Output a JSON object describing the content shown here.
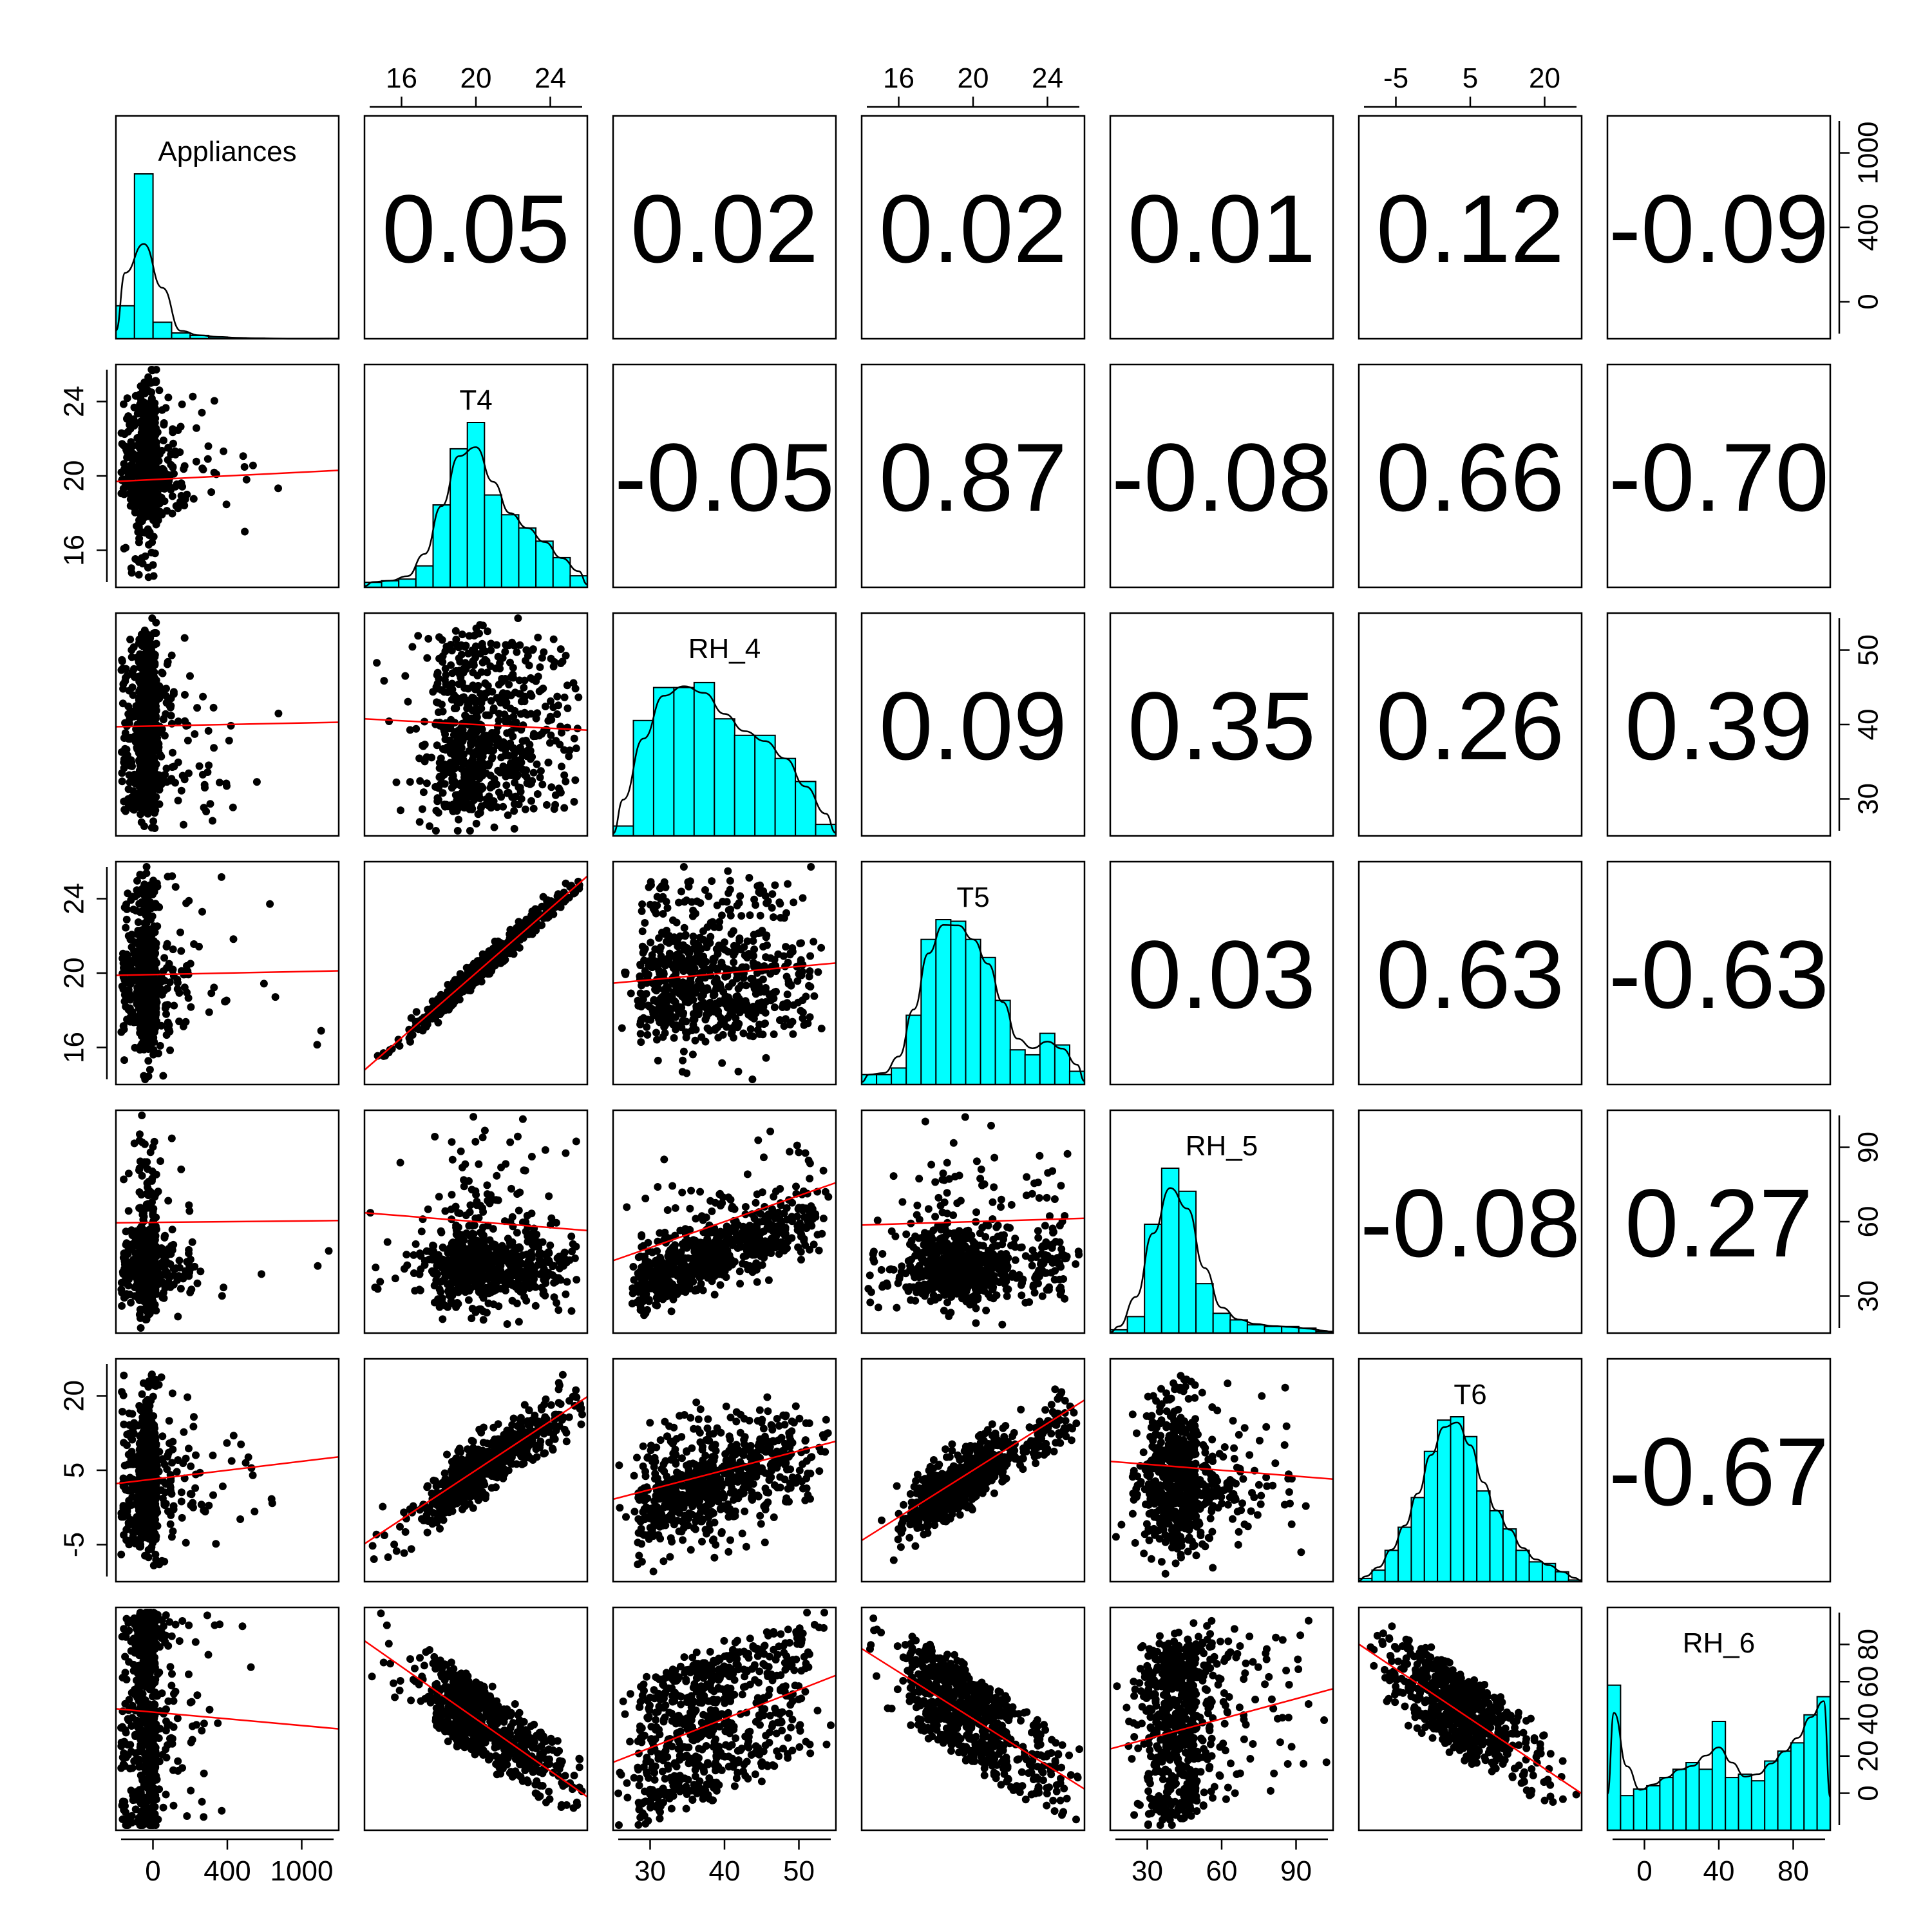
{
  "chart_data": {
    "type": "scatter",
    "variables": [
      "Appliances",
      "T4",
      "RH_4",
      "T5",
      "RH_5",
      "T6",
      "RH_6"
    ],
    "top_axis_ticks": {
      "T4": [
        "16",
        "20",
        "24"
      ],
      "T5": [
        "16",
        "20",
        "24"
      ],
      "T6": [
        "-5",
        "5",
        "20"
      ]
    },
    "bottom_axis_ticks": {
      "Appliances": [
        "0",
        "400",
        "1000"
      ],
      "RH_4": [
        "30",
        "40",
        "50"
      ],
      "RH_5": [
        "30",
        "60",
        "90"
      ],
      "RH_6": [
        "0",
        "40",
        "80"
      ]
    },
    "left_axis_ticks": {
      "T4": [
        "16",
        "20",
        "24"
      ],
      "T5": [
        "16",
        "20",
        "24"
      ],
      "T6": [
        "-5",
        "5",
        "20"
      ]
    },
    "right_axis_ticks": {
      "Appliances": [
        "0",
        "400",
        "1000"
      ],
      "RH_4": [
        "30",
        "40",
        "50"
      ],
      "RH_5": [
        "30",
        "60",
        "90"
      ],
      "RH_6": [
        "0",
        "20",
        "40",
        "60",
        "80"
      ]
    },
    "correlations": [
      {
        "row": 0,
        "col": 1,
        "value": "0.05"
      },
      {
        "row": 0,
        "col": 2,
        "value": "0.02"
      },
      {
        "row": 0,
        "col": 3,
        "value": "0.02"
      },
      {
        "row": 0,
        "col": 4,
        "value": "0.01"
      },
      {
        "row": 0,
        "col": 5,
        "value": "0.12"
      },
      {
        "row": 0,
        "col": 6,
        "value": "-0.09"
      },
      {
        "row": 1,
        "col": 2,
        "value": "-0.05"
      },
      {
        "row": 1,
        "col": 3,
        "value": "0.87"
      },
      {
        "row": 1,
        "col": 4,
        "value": "-0.08"
      },
      {
        "row": 1,
        "col": 5,
        "value": "0.66"
      },
      {
        "row": 1,
        "col": 6,
        "value": "-0.70"
      },
      {
        "row": 2,
        "col": 3,
        "value": "0.09"
      },
      {
        "row": 2,
        "col": 4,
        "value": "0.35"
      },
      {
        "row": 2,
        "col": 5,
        "value": "0.26"
      },
      {
        "row": 2,
        "col": 6,
        "value": "0.39"
      },
      {
        "row": 3,
        "col": 4,
        "value": "0.03"
      },
      {
        "row": 3,
        "col": 5,
        "value": "0.63"
      },
      {
        "row": 3,
        "col": 6,
        "value": "-0.63"
      },
      {
        "row": 4,
        "col": 5,
        "value": "-0.08"
      },
      {
        "row": 4,
        "col": 6,
        "value": "0.27"
      },
      {
        "row": 5,
        "col": 6,
        "value": "-0.67"
      }
    ],
    "histograms": {
      "Appliances": [
        0.2,
        1.0,
        0.1,
        0.035,
        0.02,
        0.01,
        0.005,
        0.003,
        0.002,
        0,
        0,
        0.001
      ],
      "T4": [
        0.03,
        0.04,
        0.05,
        0.13,
        0.5,
        0.84,
        1.0,
        0.56,
        0.44,
        0.36,
        0.28,
        0.18,
        0.07
      ],
      "RH_4": [
        0.06,
        0.7,
        0.9,
        0.9,
        0.93,
        0.71,
        0.61,
        0.61,
        0.47,
        0.33,
        0.07
      ],
      "T5": [
        0.06,
        0.06,
        0.1,
        0.42,
        0.88,
        1.0,
        0.99,
        0.88,
        0.77,
        0.51,
        0.21,
        0.18,
        0.31,
        0.24,
        0.08
      ],
      "RH_5": [
        0.02,
        0.1,
        0.66,
        1.0,
        0.86,
        0.3,
        0.12,
        0.08,
        0.05,
        0.04,
        0.04,
        0.03,
        0.01
      ],
      "T6": [
        0.02,
        0.07,
        0.19,
        0.33,
        0.51,
        0.79,
        0.98,
        1.0,
        0.88,
        0.55,
        0.43,
        0.32,
        0.19,
        0.12,
        0.11,
        0.06,
        0.01
      ],
      "RH_6": [
        0.88,
        0.21,
        0.25,
        0.27,
        0.32,
        0.37,
        0.41,
        0.37,
        0.66,
        0.32,
        0.34,
        0.3,
        0.42,
        0.48,
        0.53,
        0.7,
        0.81
      ]
    },
    "points_per_panel": 700,
    "point_color": "#000000",
    "fit_line_color": "#ff0000",
    "histogram_fill": "#00ffff",
    "histogram_stroke": "#000000",
    "density_line_color": "#000000",
    "grid": false
  }
}
